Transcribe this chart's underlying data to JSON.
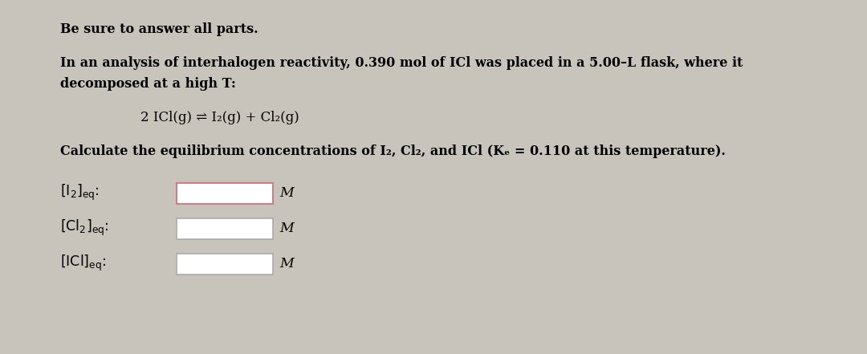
{
  "bg_color": "#c8c4bc",
  "text_area_color": "#e8e4dc",
  "title_line": "Be sure to answer all parts.",
  "para1_line1": "In an analysis of interhalogen reactivity, 0.390 mol of ICl was placed in a 5.00–L flask, where it",
  "para1_line2": "decomposed at a high T:",
  "equation": "2 ICl(g) ⇌ I₂(g) + Cl₂(g)",
  "para2": "Calculate the equilibrium concentrations of I₂, Cl₂, and ICl (Kₑ = 0.110 at this temperature).",
  "unit": "M",
  "box1_color": "#c8808a",
  "box2_color": "#aaaaaa",
  "font_size": 11.5
}
